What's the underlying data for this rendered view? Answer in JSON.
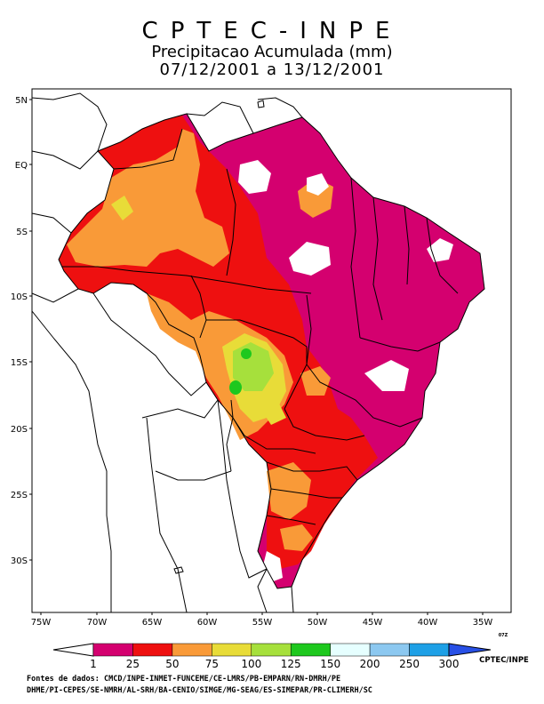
{
  "header": {
    "org": "CPTEC-INPE",
    "title": "Precipitacao Acumulada (mm)",
    "period": "07/12/2001 a 13/12/2001"
  },
  "axes": {
    "lat_labels": [
      "5N",
      "EQ",
      "5S",
      "10S",
      "15S",
      "20S",
      "25S",
      "30S"
    ],
    "lon_labels": [
      "75W",
      "70W",
      "65W",
      "60W",
      "55W",
      "50W",
      "45W",
      "40W",
      "35W"
    ]
  },
  "legend": {
    "ticks": [
      "1",
      "25",
      "50",
      "75",
      "100",
      "125",
      "150",
      "200",
      "250",
      "300"
    ],
    "colors": [
      "#d4006f",
      "#ee1010",
      "#f99a38",
      "#e8dc38",
      "#a6e03c",
      "#1ec81e",
      "#e6ffff",
      "#8cc8f0",
      "#1ea0e6",
      "#2850e6"
    ],
    "credit": "CPTEC/INPE",
    "small_code": "07Z"
  },
  "sources": {
    "line1": "Fontes de dados: CMCD/INPE-INMET-FUNCEME/CE-LMRS/PB-EMPARN/RN-DMRH/PE",
    "line2": "DHME/PI-CEPES/SE-NMRH/AL-SRH/BA-CENIO/SIMGE/MG-SEAG/ES-SIMEPAR/PR-CLIMERH/SC"
  }
}
